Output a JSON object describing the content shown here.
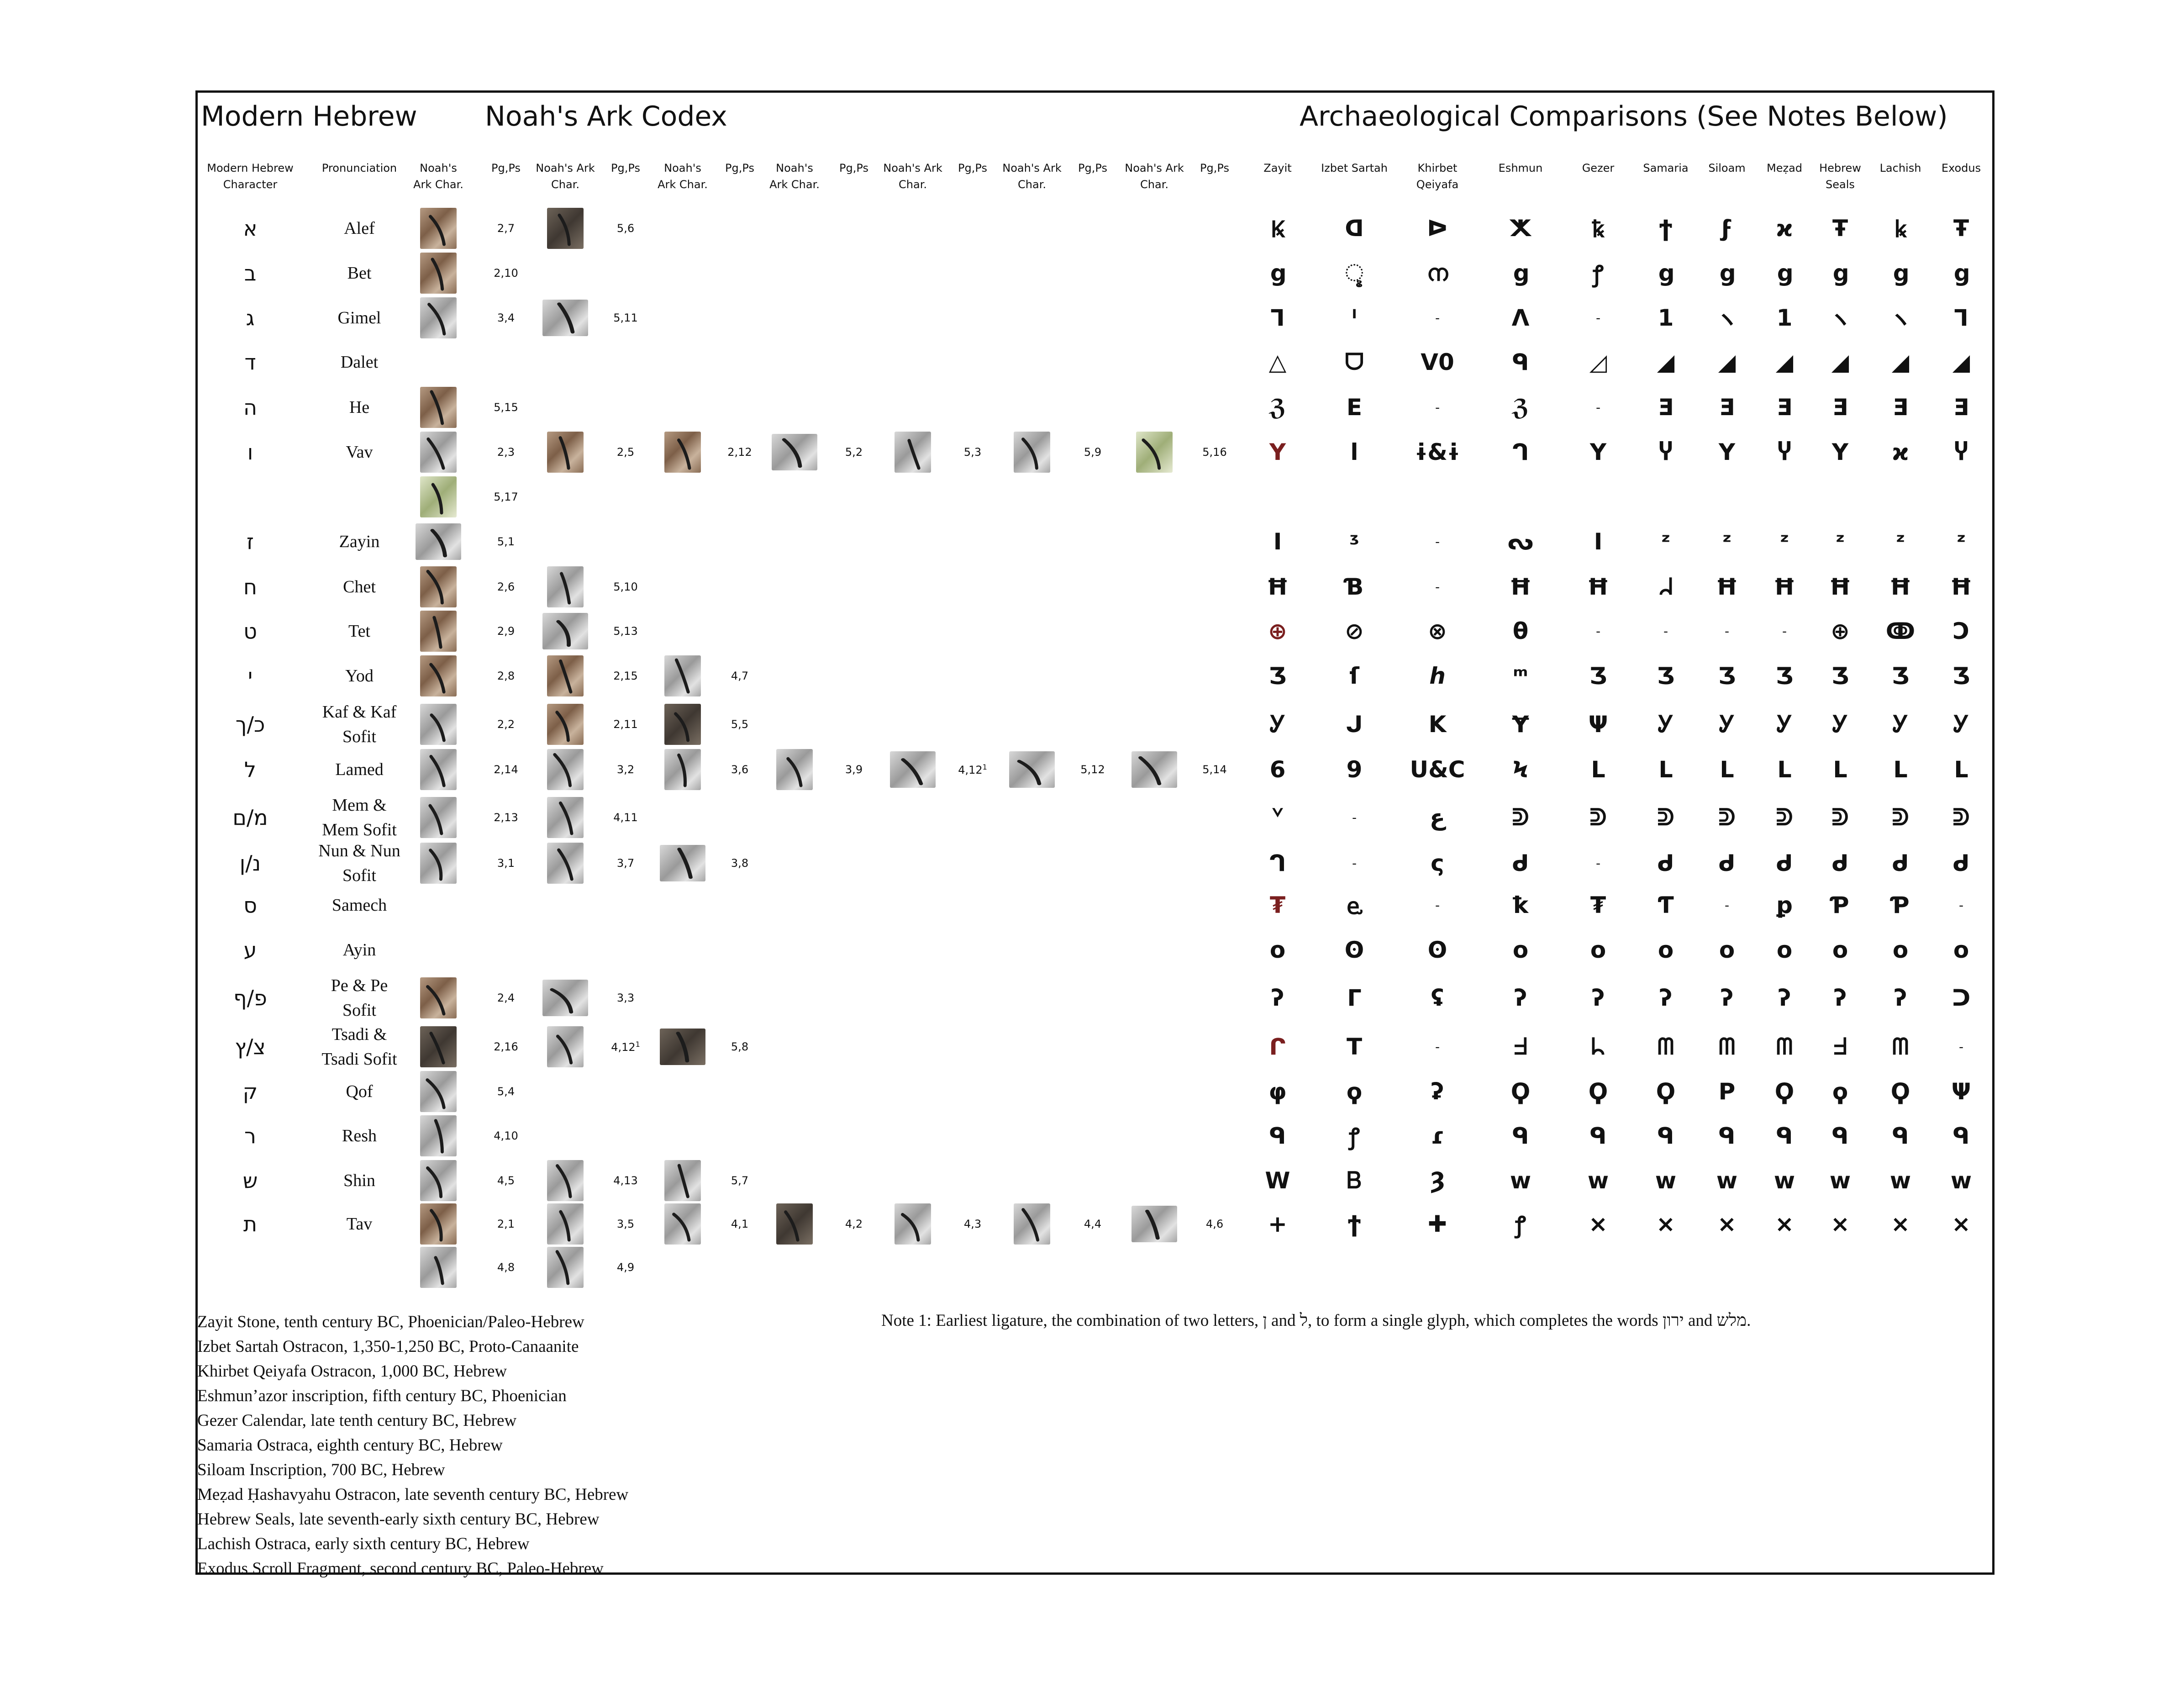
{
  "titles": {
    "modern": "Modern Hebrew",
    "codex": "Noah's Ark Codex",
    "archaeo": "Archaeological Comparisons (See Notes Below)"
  },
  "headers": [
    "Modern Hebrew\nCharacter",
    "Pronunciation",
    "Noah's\nArk Char.",
    "Pg,Ps",
    "Noah's Ark\nChar.",
    "Pg,Ps",
    "Noah's\nArk Char.",
    "Pg,Ps",
    "Noah's\nArk Char.",
    "Pg,Ps",
    "Noah's Ark\nChar.",
    "Pg,Ps",
    "Noah's Ark\nChar.",
    "Pg,Ps",
    "Noah's Ark\nChar.",
    "Pg,Ps",
    "Zayit",
    "Izbet Sartah",
    "Khirbet\nQeiyafa",
    "Eshmun",
    "Gezer",
    "Samaria",
    "Siloam",
    "Meẓad",
    "Hebrew\nSeals",
    "Lachish",
    "Exodus"
  ],
  "rows": [
    {
      "heb": "א",
      "pron": "Alef",
      "codex": [
        {
          "t": "tan",
          "pg": "2,7"
        },
        {
          "t": "dark",
          "pg": "5,6"
        }
      ],
      "glyphs": [
        "Ꝃ",
        "ᗡ",
        "ᐅ",
        "ⵅ",
        "ꝅ",
        "ϯ",
        "ϝ",
        "ϰ",
        "Ŧ",
        "ꝃ",
        "Ŧ"
      ]
    },
    {
      "heb": "ב",
      "pron": "Bet",
      "codex": [
        {
          "t": "tan",
          "pg": "2,10"
        }
      ],
      "glyphs": [
        "ց",
        "ୢ",
        "ന",
        "ց",
        "ꝭ",
        "ց",
        "ց",
        "ց",
        "ց",
        "ց",
        "ց"
      ]
    },
    {
      "heb": "ג",
      "pron": "Gimel",
      "codex": [
        {
          "t": "grey",
          "pg": "3,4"
        },
        {
          "t": "grey",
          "w": true,
          "pg": "5,11"
        }
      ],
      "glyphs": [
        "ᒣ",
        "ᑊ",
        "-",
        "ᐱ",
        "-",
        "1",
        "ヽ",
        "1",
        "ヽ",
        "ヽ",
        "ᒣ"
      ]
    },
    {
      "heb": "ד",
      "pron": "Dalet",
      "codex": [],
      "glyphs": [
        "△",
        "ᗜ",
        "ᐯ0",
        "ᑫ",
        "◿",
        "◢",
        "◢",
        "◢",
        "◢",
        "◢",
        "◢"
      ]
    },
    {
      "heb": "ה",
      "pron": "He",
      "codex": [
        {
          "t": "tan",
          "pg": "5,15"
        }
      ],
      "glyphs": [
        "ℨ",
        "E",
        "-",
        "ℨ",
        "-",
        "ⴺ",
        "ⴺ",
        "ⴺ",
        "ⴺ",
        "ⴺ",
        "ⴺ"
      ]
    },
    {
      "heb": "ו",
      "pron": "Vav",
      "codex": [
        {
          "t": "grey",
          "pg": "2,3"
        },
        {
          "t": "tan",
          "pg": "2,5"
        },
        {
          "t": "tan",
          "pg": "2,12"
        },
        {
          "t": "grey",
          "w": true,
          "pg": "5,2"
        },
        {
          "t": "grey",
          "pg": "5,3"
        },
        {
          "t": "grey",
          "pg": "5,9"
        },
        {
          "t": "green",
          "pg": "5,16"
        }
      ],
      "glyphs": [
        "Y",
        "ا",
        "ɨ&ɨ",
        "ᒉ",
        "Y",
        "Ⴤ",
        "Y",
        "Ⴤ",
        "Y",
        "ϰ",
        "Ⴤ"
      ]
    },
    {
      "heb": "",
      "pron": "",
      "codex": [
        {
          "t": "green",
          "pg": "5,17"
        }
      ],
      "glyphs": []
    },
    {
      "heb": "ז",
      "pron": "Zayin",
      "codex": [
        {
          "t": "grey",
          "w": true,
          "pg": "5,1"
        }
      ],
      "glyphs": [
        "I",
        "ᶾ",
        "-",
        "ᔓ",
        "I",
        "ᶻ",
        "ᶻ",
        "ᶻ",
        "ᶻ",
        "ᶻ",
        "ᶻ"
      ]
    },
    {
      "heb": "ח",
      "pron": "Chet",
      "codex": [
        {
          "t": "tan",
          "pg": "2,6"
        },
        {
          "t": "grey",
          "pg": "5,10"
        }
      ],
      "glyphs": [
        "Ħ",
        "Ɓ",
        "-",
        "Ħ",
        "Ħ",
        "ᖹ",
        "Ħ",
        "Ħ",
        "Ħ",
        "Ħ",
        "Ħ"
      ]
    },
    {
      "heb": "ט",
      "pron": "Tet",
      "codex": [
        {
          "t": "tan",
          "pg": "2,9"
        },
        {
          "t": "grey",
          "w": true,
          "pg": "5,13"
        }
      ],
      "glyphs": [
        "⊕",
        "⊘",
        "⊗",
        "θ",
        "-",
        "-",
        "-",
        "-",
        "⊕",
        "ↂ",
        "Ↄ"
      ]
    },
    {
      "heb": "י",
      "pron": "Yod",
      "codex": [
        {
          "t": "tan",
          "pg": "2,8"
        },
        {
          "t": "tan",
          "pg": "2,15"
        },
        {
          "t": "grey",
          "pg": "4,7"
        }
      ],
      "glyphs": [
        "Ʒ",
        "ſ",
        "ℎ",
        "ᵐ",
        "Ʒ",
        "Ʒ",
        "Ʒ",
        "Ʒ",
        "Ʒ",
        "Ʒ",
        "Ʒ"
      ]
    },
    {
      "heb": "כ/ך",
      "pron": "Kaf & Kaf\nSofit",
      "codex": [
        {
          "t": "grey",
          "pg": "2,2"
        },
        {
          "t": "tan",
          "pg": "2,11"
        },
        {
          "t": "dark",
          "pg": "5,5"
        }
      ],
      "glyphs": [
        "Ꭹ",
        "ᒍ",
        "K",
        "Ɏ",
        "Ψ",
        "Ꭹ",
        "Ꭹ",
        "Ꭹ",
        "Ꭹ",
        "Ꭹ",
        "Ꭹ"
      ]
    },
    {
      "heb": "ל",
      "pron": "Lamed",
      "codex": [
        {
          "t": "grey",
          "pg": "2,14"
        },
        {
          "t": "grey",
          "pg": "3,2"
        },
        {
          "t": "grey",
          "pg": "3,6"
        },
        {
          "t": "grey",
          "pg": "3,9"
        },
        {
          "t": "grey",
          "w": true,
          "pg": "4,12",
          "sup": "1"
        },
        {
          "t": "grey",
          "w": true,
          "pg": "5,12"
        },
        {
          "t": "grey",
          "w": true,
          "pg": "5,14"
        }
      ],
      "glyphs": [
        "6",
        "9",
        "U&C",
        "Ϟ",
        "ᒪ",
        "ᒪ",
        "ᒪ",
        "ᒪ",
        "ᒪ",
        "ᒪ",
        "ᒪ"
      ]
    },
    {
      "heb": "מ/ם",
      "pron": "Mem &\nMem Sofit",
      "codex": [
        {
          "t": "grey",
          "pg": "2,13"
        },
        {
          "t": "grey",
          "pg": "4,11"
        }
      ],
      "glyphs": [
        "ᘁ",
        "-",
        "ع",
        "ᕲ",
        "ᕲ",
        "ᕲ",
        "ᕲ",
        "ᕲ",
        "ᕲ",
        "ᕲ",
        "ᕲ"
      ]
    },
    {
      "heb": "נ/ן",
      "pron": "Nun & Nun\nSofit",
      "codex": [
        {
          "t": "grey",
          "pg": "3,1"
        },
        {
          "t": "grey",
          "pg": "3,7"
        },
        {
          "t": "grey",
          "w": true,
          "pg": "3,8"
        }
      ],
      "glyphs": [
        "ᒉ",
        "-",
        "ς",
        "ᑯ",
        "-",
        "ᑯ",
        "ᑯ",
        "ᑯ",
        "ᑯ",
        "ᑯ",
        "ᑯ"
      ]
    },
    {
      "heb": "ס",
      "pron": "Samech",
      "codex": [],
      "glyphs": [
        "₮",
        "ⱸ",
        "-",
        "ꝁ",
        "₮",
        "Ƭ",
        "-",
        "ꝑ",
        "Ƥ",
        "Ƥ",
        "-"
      ]
    },
    {
      "heb": "ע",
      "pron": "Ayin",
      "codex": [],
      "glyphs": [
        "o",
        "ʘ",
        "ʘ",
        "o",
        "o",
        "o",
        "o",
        "o",
        "o",
        "o",
        "o"
      ]
    },
    {
      "heb": "פ/ף",
      "pron": "Pe & Pe\nSofit",
      "codex": [
        {
          "t": "tan",
          "pg": "2,4"
        },
        {
          "t": "grey",
          "w": true,
          "pg": "3,3"
        }
      ],
      "glyphs": [
        "ʔ",
        "ᒥ",
        "ʢ",
        "ʔ",
        "ʔ",
        "ʔ",
        "ʔ",
        "ʔ",
        "ʔ",
        "ʔ",
        "ᑐ"
      ]
    },
    {
      "heb": "צ/ץ",
      "pron": "Tsadi &\nTsadi Sofit",
      "codex": [
        {
          "t": "dark",
          "pg": "2,16"
        },
        {
          "t": "grey",
          "pg": "4,12",
          "sup": "1"
        },
        {
          "t": "dark",
          "w": true,
          "pg": "5,8"
        }
      ],
      "glyphs": [
        "ᒋ",
        "T",
        "-",
        "ᖵ",
        "ᖺ",
        "ᗰ",
        "ᗰ",
        "ᗰ",
        "ᖵ",
        "ᗰ",
        "-"
      ]
    },
    {
      "heb": "ק",
      "pron": "Qof",
      "codex": [
        {
          "t": "grey",
          "pg": "5,4"
        }
      ],
      "glyphs": [
        "φ",
        "ϙ",
        "ʡ",
        "Ϙ",
        "Ϙ",
        "Ϙ",
        "P",
        "Ϙ",
        "ϙ",
        "Ϙ",
        "Ψ"
      ]
    },
    {
      "heb": "ר",
      "pron": "Resh",
      "codex": [
        {
          "t": "grey",
          "pg": "4,10"
        }
      ],
      "glyphs": [
        "ᑫ",
        "ꝭ",
        "ɾ",
        "ᑫ",
        "ᑫ",
        "ᑫ",
        "ᑫ",
        "ᑫ",
        "ᑫ",
        "ᑫ",
        "ᑫ"
      ]
    },
    {
      "heb": "ש",
      "pron": "Shin",
      "codex": [
        {
          "t": "grey",
          "pg": "4,5"
        },
        {
          "t": "grey",
          "pg": "4,13"
        },
        {
          "t": "grey",
          "pg": "5,7"
        }
      ],
      "glyphs": [
        "W",
        "Ᏼ",
        "Ȝ",
        "w",
        "w",
        "w",
        "w",
        "w",
        "w",
        "w",
        "w"
      ]
    },
    {
      "heb": "ת",
      "pron": "Tav",
      "codex": [
        {
          "t": "tan",
          "pg": "2,1"
        },
        {
          "t": "grey",
          "pg": "3,5"
        },
        {
          "t": "grey",
          "pg": "4,1"
        },
        {
          "t": "dark",
          "pg": "4,2"
        },
        {
          "t": "grey",
          "pg": "4,3"
        },
        {
          "t": "grey",
          "pg": "4,4"
        },
        {
          "t": "grey",
          "w": true,
          "pg": "4,6"
        }
      ],
      "glyphs": [
        "+",
        "ϯ",
        "✚",
        "ꝭ",
        "×",
        "×",
        "×",
        "×",
        "×",
        "×",
        "×"
      ]
    },
    {
      "heb": "",
      "pron": "",
      "codex": [
        {
          "t": "grey",
          "pg": "4,8"
        },
        {
          "t": "grey",
          "pg": "4,9"
        }
      ],
      "glyphs": []
    }
  ],
  "sources": [
    "Zayit Stone, tenth century BC, Phoenician/Paleo-Hebrew",
    "Izbet Sartah Ostracon, 1,350-1,250 BC, Proto-Canaanite",
    "Khirbet Qeiyafa Ostracon, 1,000 BC, Hebrew",
    "Eshmun’azor inscription, fifth century BC, Phoenician",
    "Gezer Calendar, late tenth century BC, Hebrew",
    "Samaria Ostraca, eighth century BC, Hebrew",
    "Siloam Inscription, 700 BC, Hebrew",
    "Meẓad Ḥashavyahu Ostracon, late seventh century BC, Hebrew",
    "Hebrew Seals, late seventh-early sixth century BC, Hebrew",
    "Lachish Ostraca, early sixth century BC, Hebrew",
    "Exodus Scroll Fragment, second century BC, Paleo-Hebrew"
  ],
  "note1": "Note 1: Earliest ligature, the combination of two letters, ן and ל, to form a single glyph, which completes the words ירון and מלש."
}
